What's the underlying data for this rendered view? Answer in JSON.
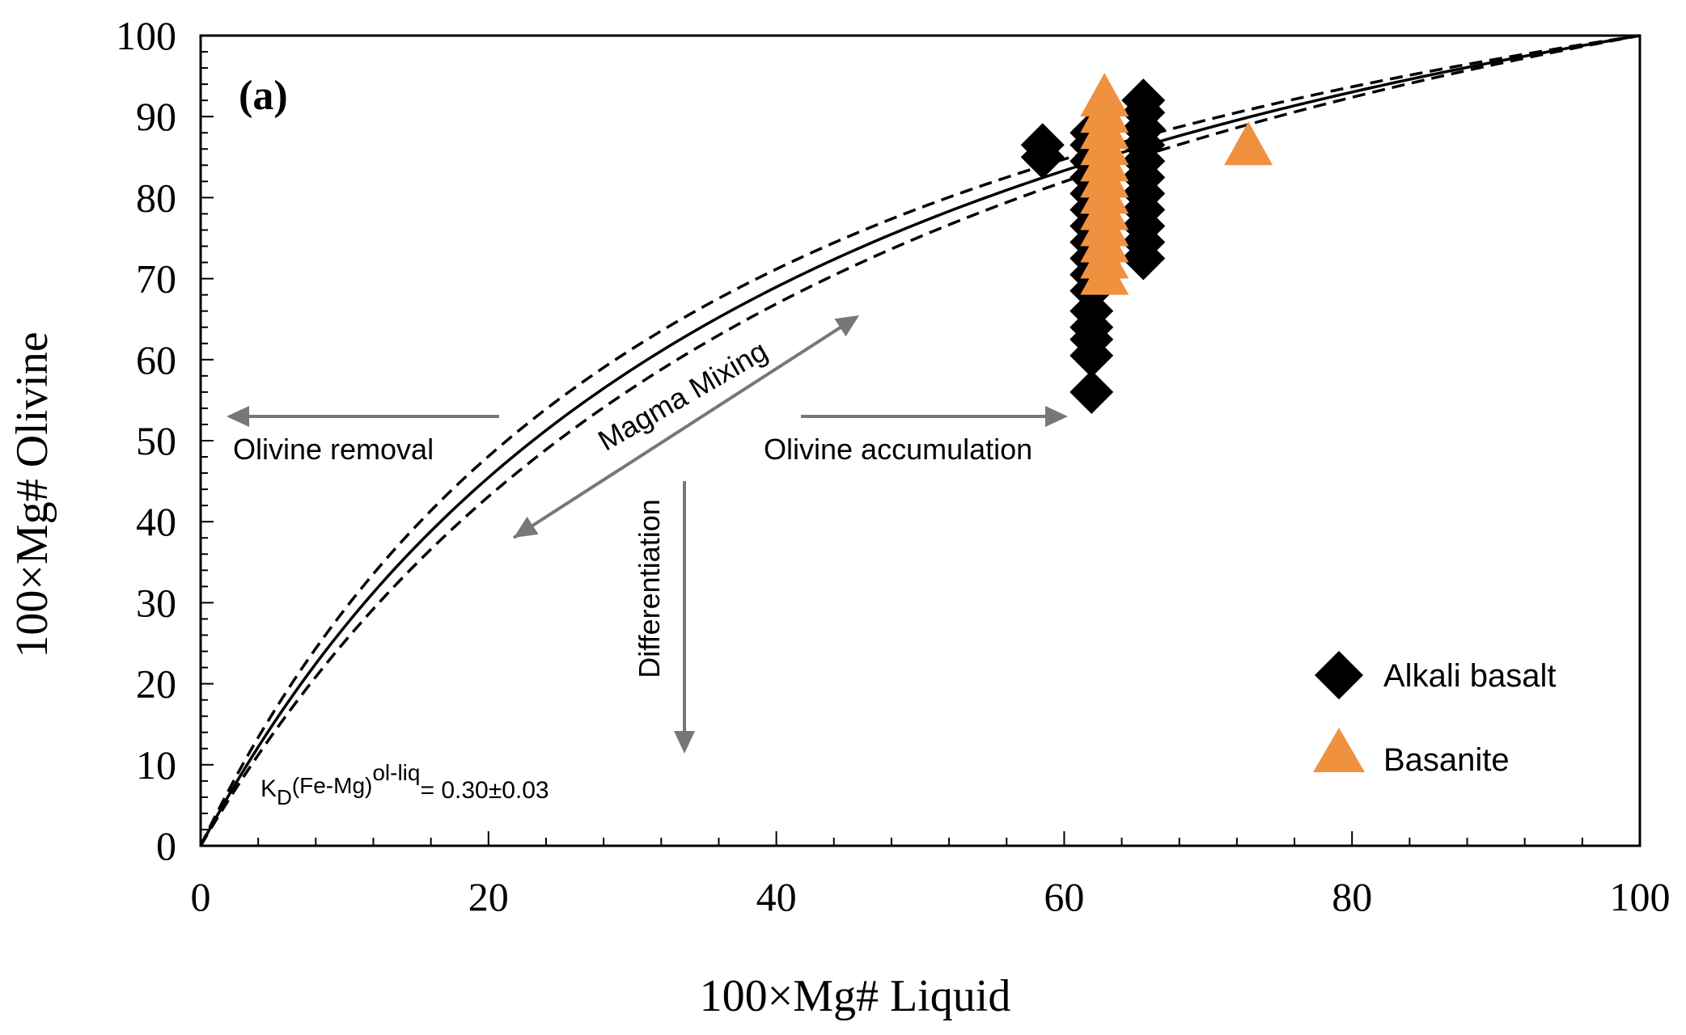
{
  "chart_data": {
    "type": "scatter",
    "panel_label": "(a)",
    "xlabel": "100×Mg# Liquid",
    "ylabel": "100×Mg# Olivine",
    "xlim": [
      0,
      100
    ],
    "ylim": [
      0,
      100
    ],
    "x_ticks": [
      "0",
      "20",
      "40",
      "60",
      "80",
      "100"
    ],
    "y_ticks": [
      "0",
      "10",
      "20",
      "30",
      "40",
      "50",
      "60",
      "70",
      "80",
      "90",
      "100"
    ],
    "equilibrium_curves": {
      "kd_center": 0.3,
      "kd_low": 0.27,
      "kd_high": 0.33,
      "center_style": "solid",
      "bounds_style": "dashed"
    },
    "kd_label": {
      "k": "K",
      "sub": "D",
      "paren": "(Fe-Mg)",
      "sup": "ol-liq",
      "value": "= 0.30±0.03"
    },
    "annotations": {
      "olivine_removal": "Olivine removal",
      "olivine_accumulation": "Olivine accumulation",
      "magma_mixing": "Magma Mixing",
      "differentiation": "Differentiation"
    },
    "legend": {
      "placement": "bottom-right",
      "entries": [
        "Alkali basalt",
        "Basanite"
      ]
    },
    "colors": {
      "alkali_basalt": "#000000",
      "basanite": "#f0913f",
      "arrow": "#777777"
    },
    "series": [
      {
        "name": "Alkali basalt",
        "marker": "diamond",
        "points": [
          [
            58.5,
            86.5
          ],
          [
            58.5,
            85.0
          ],
          [
            61.9,
            56.0
          ],
          [
            61.9,
            60.5
          ],
          [
            61.9,
            62.5
          ],
          [
            61.9,
            64.0
          ],
          [
            61.9,
            66.0
          ],
          [
            61.9,
            68.5
          ],
          [
            61.9,
            70.5
          ],
          [
            61.9,
            72.5
          ],
          [
            61.9,
            74.5
          ],
          [
            61.9,
            76.5
          ],
          [
            61.9,
            78.5
          ],
          [
            61.9,
            80.5
          ],
          [
            61.9,
            82.5
          ],
          [
            61.9,
            84.5
          ],
          [
            61.9,
            86.5
          ],
          [
            61.9,
            88.0
          ],
          [
            65.5,
            72.5
          ],
          [
            65.5,
            74.5
          ],
          [
            65.5,
            76.5
          ],
          [
            65.5,
            78.5
          ],
          [
            65.5,
            80.5
          ],
          [
            65.5,
            82.5
          ],
          [
            65.5,
            84.5
          ],
          [
            65.5,
            86.5
          ],
          [
            65.5,
            88.5
          ],
          [
            65.5,
            90.5
          ],
          [
            65.5,
            92.0
          ]
        ]
      },
      {
        "name": "Basanite",
        "marker": "triangle",
        "points": [
          [
            62.8,
            70.0
          ],
          [
            62.8,
            72.0
          ],
          [
            62.8,
            74.0
          ],
          [
            62.8,
            76.0
          ],
          [
            62.8,
            78.0
          ],
          [
            62.8,
            80.0
          ],
          [
            62.8,
            82.0
          ],
          [
            62.8,
            84.0
          ],
          [
            62.8,
            86.0
          ],
          [
            62.8,
            88.0
          ],
          [
            62.8,
            90.0
          ],
          [
            62.8,
            92.0
          ],
          [
            72.8,
            86.0
          ]
        ]
      }
    ]
  }
}
